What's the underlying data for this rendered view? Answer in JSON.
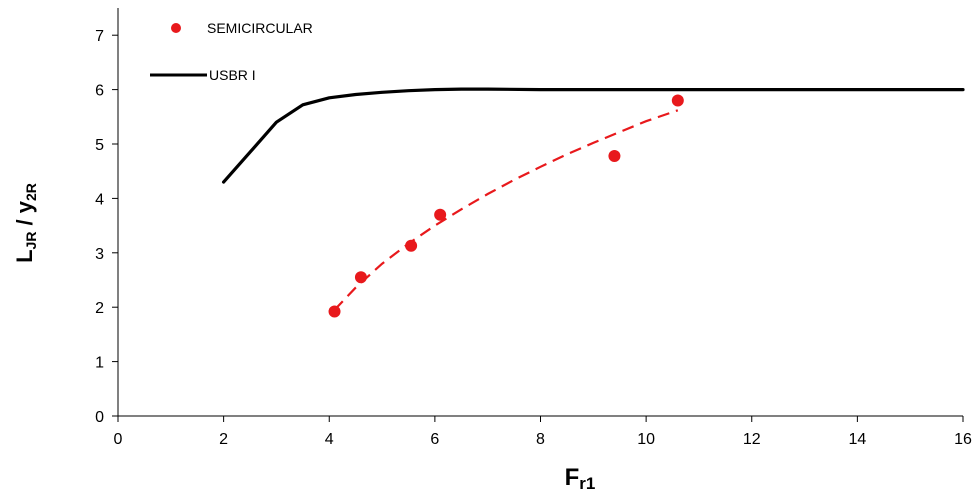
{
  "chart_data": {
    "type": "scatter",
    "xlabel": {
      "main": "F",
      "sub": "r1"
    },
    "ylabel": {
      "main1": "L",
      "sub1": "JR",
      "mid": " / ",
      "main2": "y",
      "sub2": "2R"
    },
    "xlim": [
      0,
      16
    ],
    "ylim": [
      0,
      7.5
    ],
    "x_ticks": [
      0,
      2,
      4,
      6,
      8,
      10,
      12,
      14,
      16
    ],
    "y_ticks": [
      0,
      1,
      2,
      3,
      4,
      5,
      6,
      7
    ],
    "grid": false,
    "legend_position": "top-left",
    "series": [
      {
        "name": "SEMICIRCULAR",
        "kind": "points",
        "color": "#e8191c",
        "x": [
          4.1,
          4.6,
          5.55,
          6.1,
          9.4,
          10.6
        ],
        "y": [
          1.92,
          2.55,
          3.13,
          3.7,
          4.78,
          5.8
        ]
      },
      {
        "name": "USBR I",
        "kind": "line",
        "color": "#000000",
        "x": [
          2.0,
          2.5,
          3.0,
          3.5,
          4.0,
          4.5,
          5.0,
          5.5,
          6.0,
          6.5,
          7.0,
          8.0,
          10.0,
          12.0,
          14.0,
          16.0
        ],
        "y": [
          4.3,
          4.85,
          5.4,
          5.72,
          5.85,
          5.91,
          5.95,
          5.98,
          6.0,
          6.01,
          6.01,
          6.0,
          6.0,
          6.0,
          6.0,
          6.0
        ]
      },
      {
        "kind": "trendline",
        "style": "dashed",
        "color": "#e8191c",
        "x": [
          4.1,
          4.5,
          5.0,
          5.5,
          6.0,
          6.5,
          7.0,
          7.5,
          8.0,
          8.5,
          9.0,
          9.5,
          10.0,
          10.6
        ],
        "y": [
          1.95,
          2.36,
          2.8,
          3.17,
          3.5,
          3.8,
          4.08,
          4.34,
          4.58,
          4.81,
          5.02,
          5.22,
          5.42,
          5.62
        ]
      }
    ]
  }
}
